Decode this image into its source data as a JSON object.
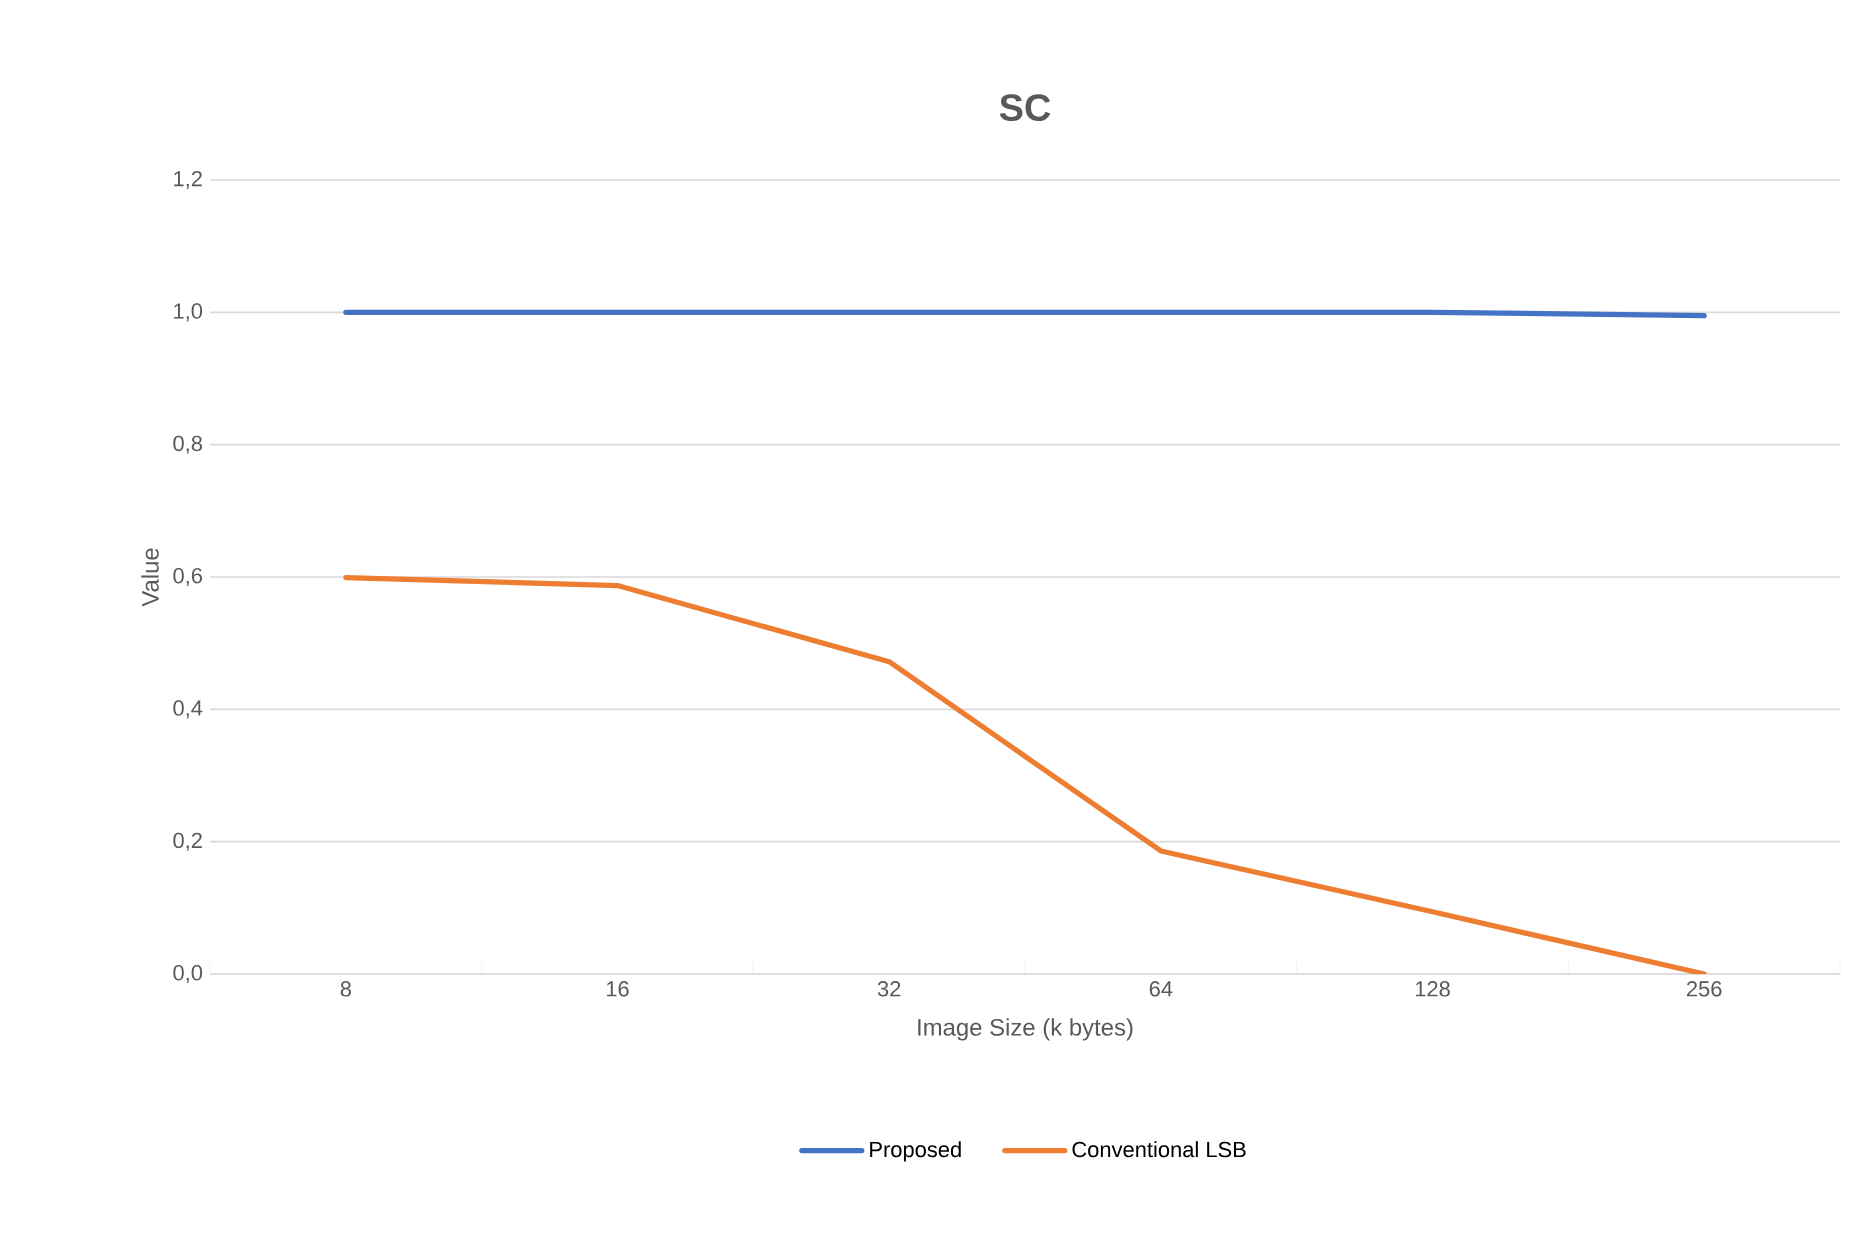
{
  "chart_data": {
    "type": "line",
    "title": "SC",
    "xlabel": "Image Size (k bytes)",
    "ylabel": "Value",
    "categories": [
      "8",
      "16",
      "32",
      "64",
      "128",
      "256"
    ],
    "series": [
      {
        "name": "Proposed",
        "color": "#4472c4",
        "values": [
          1.0,
          1.0,
          1.0,
          1.0,
          1.0,
          0.995
        ]
      },
      {
        "name": "Conventional LSB",
        "color": "#ed7d31",
        "values": [
          0.599,
          0.587,
          0.472,
          0.186,
          0.094,
          0.0
        ]
      }
    ],
    "ylim": [
      0,
      1.2
    ],
    "yticks": [
      {
        "value": 0,
        "label": "0,0"
      },
      {
        "value": 0.2,
        "label": "0,2"
      },
      {
        "value": 0.4,
        "label": "0,4"
      },
      {
        "value": 0.6,
        "label": "0,6"
      },
      {
        "value": 0.8,
        "label": "0,8"
      },
      {
        "value": 1.0,
        "label": "1,0"
      },
      {
        "value": 1.2,
        "label": "1,2"
      }
    ],
    "grid": "y",
    "legend": "bottom",
    "marker": "none",
    "line_style": "solid"
  }
}
